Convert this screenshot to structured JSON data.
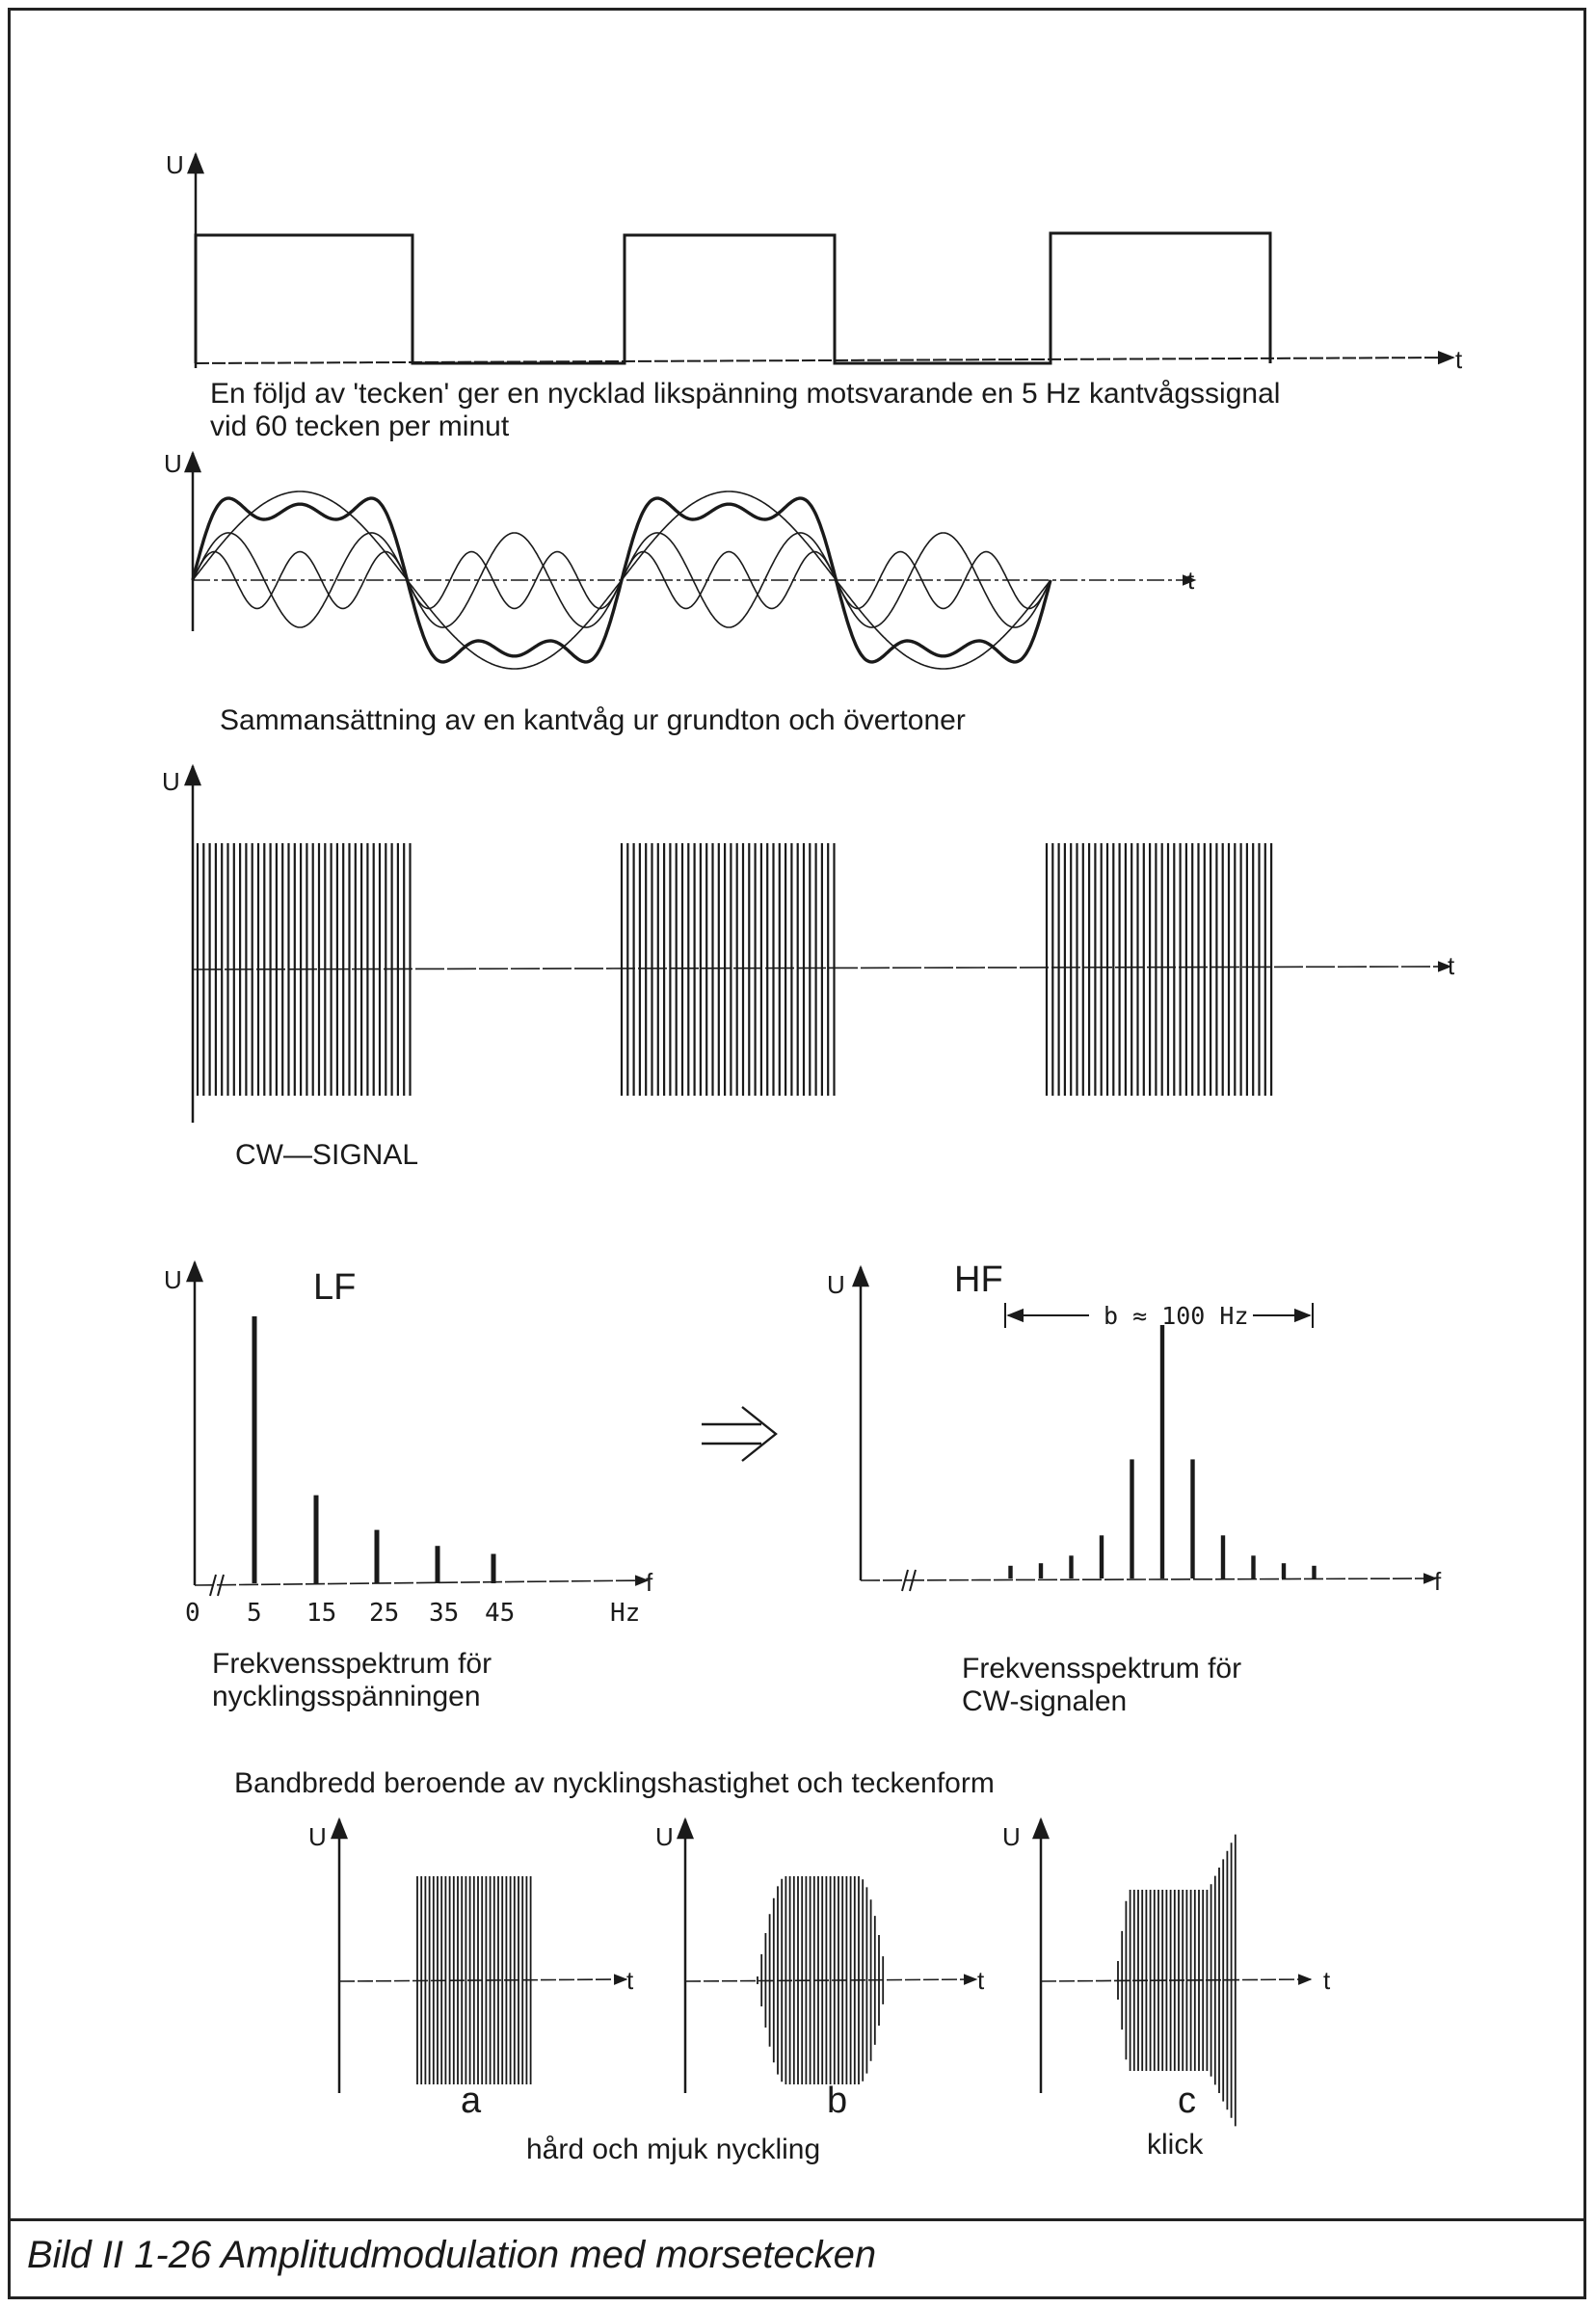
{
  "caption": "Bild II 1-26  Amplitudmodulation med morsetecken",
  "panel1": {
    "u_label": "U",
    "t_label": "t",
    "text_line1": "En följd av  'tecken'  ger en nycklad likspänning motsvarande en 5 Hz kantvågssignal",
    "text_line2": "vid 60 tecken per minut",
    "pulses": 3
  },
  "panel2": {
    "u_label": "U",
    "t_label": "t",
    "text": "Sammansättning av en kantvåg ur grundton och övertoner",
    "harmonics": [
      1,
      3,
      5
    ]
  },
  "panel3": {
    "u_label": "U",
    "t_label": "t",
    "text": "CW—SIGNAL",
    "bursts": 3
  },
  "panel4": {
    "u_label": "U",
    "f_label": "f",
    "title": "LF",
    "tick_labels": [
      "0",
      "5",
      "15",
      "25",
      "35",
      "45",
      "Hz"
    ],
    "text_line1": "Frekvensspektrum för",
    "text_line2": "nycklingsspänningen"
  },
  "panel5": {
    "u_label": "U",
    "f_label": "f",
    "title": "HF",
    "bandwidth_label": "b ≈ 100 Hz",
    "text_line1": "Frekvensspektrum för",
    "text_line2": "CW-signalen"
  },
  "arrow_icon": "implies-arrow-icon",
  "panel6": {
    "heading": "Bandbredd beroende av nycklingshastighet och teckenform",
    "u_label": "U",
    "t_label": "t",
    "sub_a": "a",
    "sub_b": "b",
    "sub_c": "c",
    "text_ab": "hård och mjuk nyckling",
    "text_c": "klick"
  },
  "chart_data": [
    {
      "type": "bar",
      "title": "LF",
      "xlabel": "Hz",
      "ylabel": "U",
      "categories": [
        "5",
        "15",
        "25",
        "35",
        "45"
      ],
      "values": [
        1.0,
        0.33,
        0.2,
        0.14,
        0.11
      ]
    },
    {
      "type": "bar",
      "title": "HF",
      "xlabel": "f",
      "ylabel": "U",
      "annotation": "b ≈ 100 Hz",
      "values": [
        0.05,
        0.06,
        0.09,
        0.17,
        0.47,
        1.0,
        0.47,
        0.17,
        0.09,
        0.06,
        0.05
      ]
    }
  ]
}
